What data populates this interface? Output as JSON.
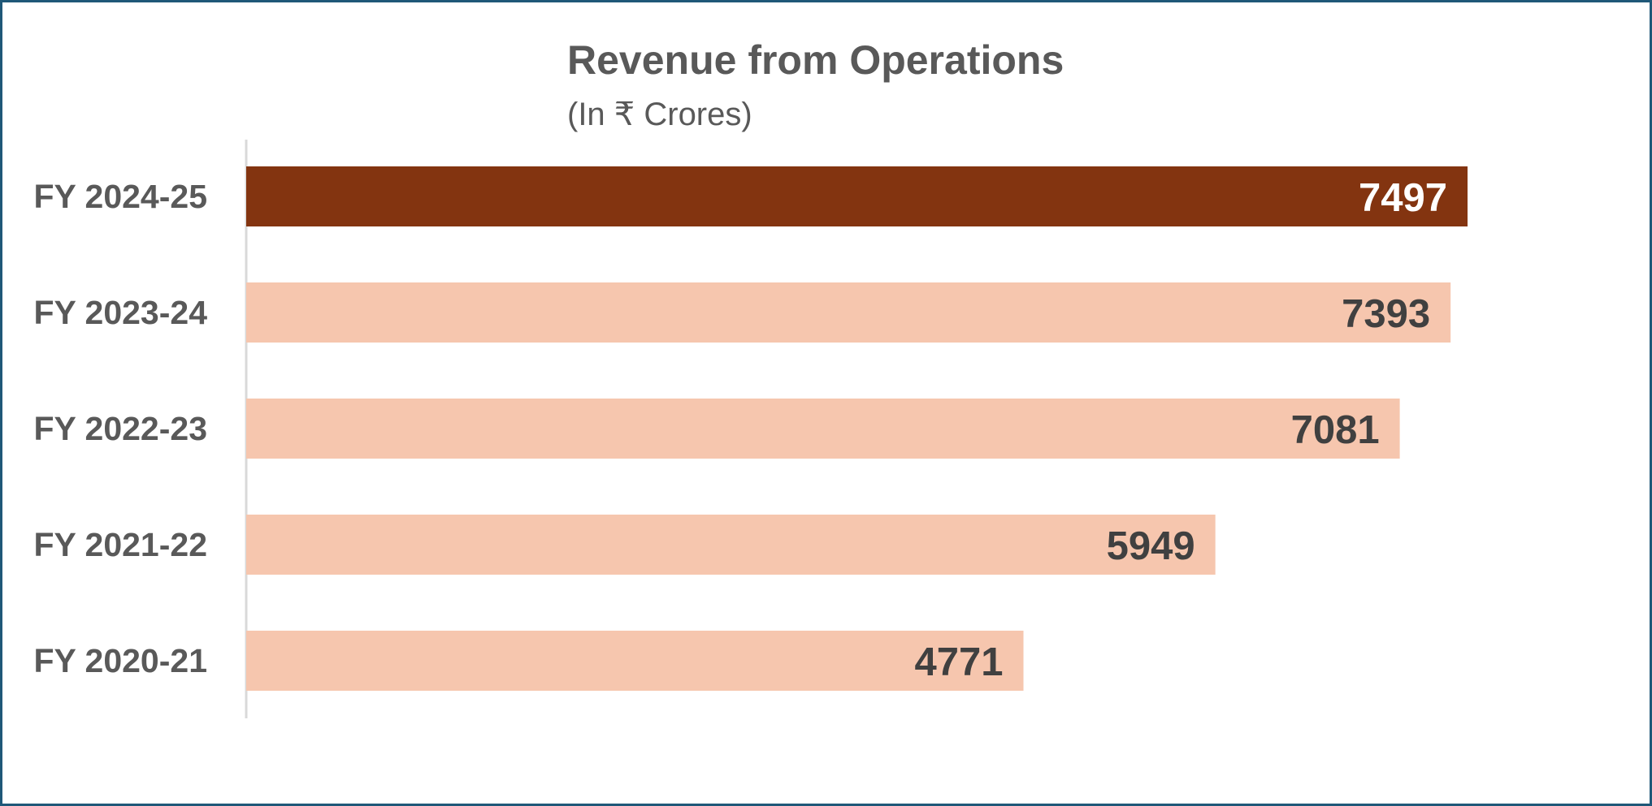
{
  "chart_data": {
    "type": "bar",
    "orientation": "horizontal",
    "title": "Revenue from Operations",
    "subtitle": "(In ₹ Crores)",
    "categories": [
      "FY 2024-25",
      "FY 2023-24",
      "FY 2022-23",
      "FY 2021-22",
      "FY 2020-21"
    ],
    "values": [
      7497,
      7393,
      7081,
      5949,
      4771
    ],
    "data_labels": [
      "7497",
      "7393",
      "7081",
      "5949",
      "4771"
    ],
    "highlight_index": 0,
    "xlim": [
      0,
      10000
    ],
    "grid": false,
    "legend": "none",
    "colors": {
      "highlight_bar": "#833410",
      "bar": "#f6c6ae",
      "highlight_label": "#ffffff",
      "label": "#404040",
      "axis_line": "#d9d9d9",
      "border": "#1f5878"
    }
  }
}
